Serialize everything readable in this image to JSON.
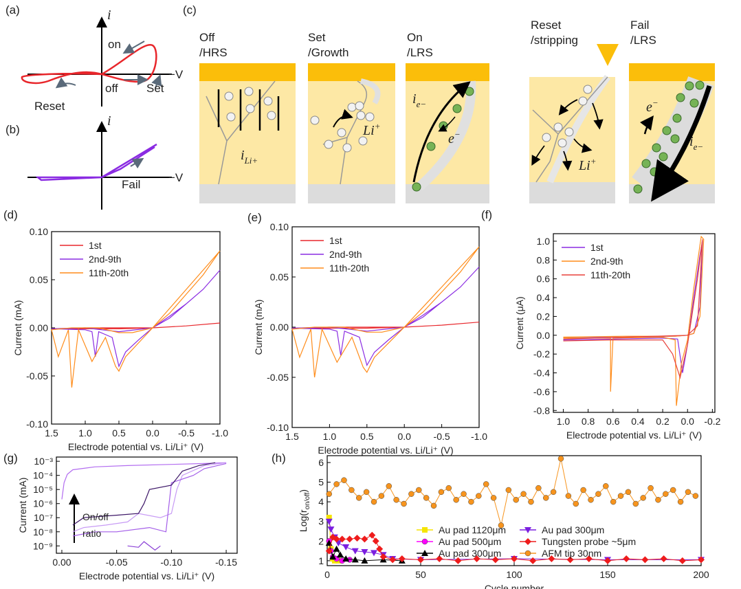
{
  "diagrams": {
    "a": {
      "panel": "(a)",
      "axis_i": "i",
      "on": "on",
      "off": "off",
      "set": "Set",
      "reset": "Reset",
      "neg_v": "−V"
    },
    "b": {
      "panel": "(b)",
      "axis_i": "i",
      "fail": "Fail",
      "neg_v": "−V"
    },
    "c": {
      "panel": "(c)",
      "stages": [
        {
          "title": [
            "Off",
            "/HRS"
          ],
          "label": {
            "base": "i",
            "sub": "Li+"
          }
        },
        {
          "title": [
            "Set",
            "/Growth"
          ],
          "label": {
            "base": "Li",
            "sup": "+"
          }
        },
        {
          "title": [
            "On",
            "/LRS"
          ],
          "labels": [
            {
              "base": "i",
              "sub": "e−"
            },
            {
              "base": "e",
              "sup": "−"
            }
          ]
        },
        {
          "title": [
            "Reset",
            "/stripping"
          ],
          "label": {
            "base": "Li",
            "sup": "+"
          }
        },
        {
          "title": [
            "Fail",
            "/LRS"
          ],
          "labels": [
            {
              "base": "e",
              "sup": "−"
            },
            {
              "base": "i",
              "sub": "e−"
            }
          ]
        }
      ]
    }
  },
  "chart_data": [
    {
      "panel": "(d)",
      "type": "line",
      "xlabel": "Electrode potential vs. Li/Li⁺ (V)",
      "ylabel": "Current (mA)",
      "xlim": [
        1.5,
        -1.0
      ],
      "ylim": [
        -0.1,
        0.1
      ],
      "xticks": [
        1.5,
        {
          "value": 1,
          "label": "1.0"
        },
        0.5,
        {
          "value": 0,
          "label": "0.0"
        },
        -0.5,
        {
          "value": -1,
          "label": "-1.0"
        }
      ],
      "yticks": [
        {
          "value": -0.1,
          "label": "-0.10"
        },
        -0.05,
        {
          "value": 0,
          "label": "0.00"
        },
        0.05,
        {
          "value": 0.1,
          "label": "0.10"
        }
      ],
      "legend": "upper left",
      "series": [
        {
          "name": "1st",
          "color": "#e8262b",
          "x": [
            0,
            -0.5,
            -1.0,
            -0.5,
            0,
            0.5,
            1.0,
            1.5,
            1.0,
            0.5,
            0
          ],
          "values": [
            0,
            0.002,
            0.005,
            0.002,
            0,
            -0.001,
            -0.001,
            -0.001,
            0,
            0,
            0
          ]
        },
        {
          "name": "2nd-9th",
          "color": "#8a2be2",
          "x": [
            0,
            -0.25,
            -0.5,
            -0.75,
            -1.0,
            -0.75,
            -0.5,
            -0.25,
            0,
            0.2,
            0.4,
            0.5,
            0.6,
            0.8,
            0.85,
            0.9,
            1.0,
            1.5,
            1.0,
            0.5,
            0
          ],
          "values": [
            0,
            0.012,
            0.025,
            0.04,
            0.06,
            0.04,
            0.025,
            0.01,
            0,
            -0.012,
            -0.025,
            -0.04,
            -0.01,
            -0.004,
            -0.03,
            -0.004,
            -0.002,
            -0.001,
            0,
            -0.004,
            0
          ]
        },
        {
          "name": "11th-20th",
          "color": "#ff8c1a",
          "x": [
            0,
            -0.25,
            -0.5,
            -0.75,
            -1.0,
            -0.75,
            -0.5,
            -0.25,
            0,
            0.2,
            0.4,
            0.5,
            0.55,
            0.7,
            0.9,
            1.1,
            1.2,
            1.25,
            1.4,
            1.5,
            1.2,
            1.0,
            0.8,
            0.5,
            0.3,
            0
          ],
          "values": [
            0,
            0.02,
            0.04,
            0.06,
            0.08,
            0.055,
            0.035,
            0.015,
            0,
            -0.015,
            -0.03,
            -0.045,
            -0.04,
            -0.01,
            -0.035,
            -0.002,
            -0.062,
            -0.002,
            -0.03,
            -0.002,
            0,
            0,
            0,
            -0.005,
            -0.005,
            0
          ]
        }
      ]
    },
    {
      "panel": "(e)",
      "type": "line",
      "xlabel": "Electrode potential vs. Li/Li⁺ (V)",
      "ylabel": "Current (mA)",
      "xlim": [
        1.5,
        -1.0
      ],
      "ylim": [
        -0.1,
        0.1
      ],
      "xticks": [
        1.5,
        {
          "value": 1,
          "label": "1.0"
        },
        0.5,
        {
          "value": 0,
          "label": "0.0"
        },
        -0.5,
        {
          "value": -1,
          "label": "-1.0"
        }
      ],
      "yticks": [
        {
          "value": -0.1,
          "label": "-0.10"
        },
        -0.05,
        {
          "value": 0,
          "label": "0.00"
        },
        0.05,
        {
          "value": 0.1,
          "label": "0.10"
        }
      ],
      "legend": "upper left",
      "series": [
        {
          "name": "1st",
          "color": "#e8262b",
          "x": [
            0,
            -0.5,
            -1.0,
            -0.5,
            0,
            0.5,
            1.0,
            1.5,
            1.0,
            0.5,
            0
          ],
          "values": [
            0,
            0.002,
            0.005,
            0.002,
            0,
            -0.001,
            -0.001,
            -0.001,
            0,
            0,
            0
          ]
        },
        {
          "name": "2nd-9th",
          "color": "#8a2be2",
          "x": [
            0,
            -0.25,
            -0.5,
            -0.75,
            -1.0,
            -0.75,
            -0.5,
            -0.25,
            0,
            0.2,
            0.4,
            0.5,
            0.6,
            0.8,
            0.85,
            0.9,
            1.0,
            1.5,
            1.0,
            0.5,
            0
          ],
          "values": [
            0,
            0.012,
            0.025,
            0.04,
            0.06,
            0.04,
            0.025,
            0.01,
            0,
            -0.012,
            -0.025,
            -0.038,
            -0.01,
            -0.004,
            -0.028,
            -0.004,
            -0.002,
            -0.001,
            0,
            -0.004,
            0
          ]
        },
        {
          "name": "11th-20th",
          "color": "#ff8c1a",
          "x": [
            0,
            -0.25,
            -0.5,
            -0.75,
            -1.0,
            -0.75,
            -0.5,
            -0.25,
            0,
            0.2,
            0.4,
            0.5,
            0.55,
            0.7,
            0.9,
            1.1,
            1.2,
            1.25,
            1.4,
            1.5,
            1.2,
            1.0,
            0.8,
            0.5,
            0.3,
            0
          ],
          "values": [
            0,
            0.02,
            0.04,
            0.06,
            0.08,
            0.055,
            0.035,
            0.015,
            0,
            -0.015,
            -0.03,
            -0.045,
            -0.04,
            -0.01,
            -0.035,
            -0.002,
            -0.05,
            -0.002,
            -0.03,
            -0.002,
            0,
            0,
            0,
            -0.005,
            -0.005,
            0
          ]
        }
      ]
    },
    {
      "panel": "(f)",
      "type": "line",
      "xlabel": "Electrode potential vs. Li/Li⁺ (V)",
      "ylabel": "Current (μA)",
      "xlim": [
        1.08,
        -0.22
      ],
      "ylim": [
        -0.82,
        1.08
      ],
      "xticks": [
        {
          "value": 1,
          "label": "1.0"
        },
        0.8,
        0.6,
        0.4,
        0.2,
        {
          "value": 0,
          "label": "0.0"
        },
        -0.2
      ],
      "yticks": [
        -0.8,
        -0.6,
        -0.4,
        -0.2,
        {
          "value": 0,
          "label": "0.0"
        },
        0.2,
        0.4,
        0.6,
        0.8,
        {
          "value": 1,
          "label": "1.0"
        }
      ],
      "legend": "upper left",
      "series": [
        {
          "name": "1st",
          "color": "#8a2be2",
          "x": [
            1.0,
            0.6,
            0.2,
            0.08,
            0.04,
            0.0,
            -0.05,
            -0.1,
            -0.12,
            -0.1,
            -0.05,
            0.0,
            0.1,
            0.5,
            1.0
          ],
          "values": [
            -0.05,
            -0.04,
            -0.03,
            -0.04,
            -0.4,
            -0.1,
            0.4,
            0.85,
            1.0,
            0.3,
            0.02,
            0.0,
            -0.01,
            -0.02,
            -0.03
          ]
        },
        {
          "name": "2nd-9th",
          "color": "#ff8c1a",
          "x": [
            1.0,
            0.62,
            0.62,
            0.6,
            0.2,
            0.1,
            0.09,
            0.05,
            0.0,
            -0.05,
            -0.11,
            -0.13,
            -0.1,
            -0.05,
            0.0,
            0.1,
            0.5,
            1.0
          ],
          "values": [
            -0.03,
            -0.03,
            -0.6,
            -0.03,
            -0.02,
            -0.05,
            -0.75,
            -0.3,
            -0.05,
            0.5,
            1.05,
            1.02,
            0.2,
            0.02,
            0.0,
            -0.01,
            -0.01,
            -0.02
          ]
        },
        {
          "name": "11th-20th",
          "color": "#e8413a",
          "x": [
            1.0,
            0.6,
            0.2,
            0.12,
            0.06,
            0.0,
            -0.08,
            -0.12,
            -0.08,
            0.0,
            0.5,
            1.0
          ],
          "values": [
            -0.06,
            -0.05,
            -0.05,
            -0.2,
            -0.45,
            -0.1,
            0.6,
            1.02,
            0.1,
            0.0,
            -0.02,
            -0.04
          ]
        }
      ]
    },
    {
      "panel": "(g)",
      "type": "line",
      "xlabel": "Electrode potential vs. Li/Li⁺ (V)",
      "ylabel": "Current (mA)",
      "xlim": [
        0.005,
        -0.16
      ],
      "ylim": [
        3e-10,
        0.002
      ],
      "ylog": true,
      "xticks": [
        {
          "value": 0,
          "label": "0.00"
        },
        -0.05,
        {
          "value": -0.1,
          "label": "-0.10"
        },
        -0.15
      ],
      "yticks": [
        {
          "value": 1e-09,
          "label": "10⁻⁹"
        },
        {
          "value": 1e-08,
          "label": "10⁻⁸"
        },
        {
          "value": 1e-07,
          "label": "10⁻⁷"
        },
        {
          "value": 1e-06,
          "label": "10⁻⁶"
        },
        {
          "value": 1e-05,
          "label": "10⁻⁵"
        },
        {
          "value": 0.0001,
          "label": "10⁻⁴"
        },
        {
          "value": 0.001,
          "label": "10⁻³"
        }
      ],
      "annotation": [
        "On/off",
        "ratio"
      ],
      "series": [
        {
          "color": "#b26cf0",
          "x": [
            0,
            -0.002,
            -0.005,
            -0.01,
            -0.03,
            -0.06,
            -0.1,
            -0.13,
            -0.15
          ],
          "values": [
            2e-06,
            3e-05,
            0.00012,
            0.00025,
            0.0004,
            0.0005,
            0.0006,
            0.0007,
            0.0008
          ]
        },
        {
          "color": "#c79af5",
          "x": [
            -0.01,
            -0.02,
            -0.04,
            -0.06,
            -0.07,
            -0.09,
            -0.1,
            -0.105,
            -0.11,
            -0.13,
            -0.15
          ],
          "values": [
            1e-08,
            2e-08,
            3e-08,
            5e-08,
            2e-07,
            1e-07,
            2e-07,
            1e-05,
            0.0001,
            0.0005,
            0.0008
          ]
        },
        {
          "color": "#a35de8",
          "x": [
            -0.01,
            -0.03,
            -0.05,
            -0.08,
            -0.095,
            -0.1,
            -0.12,
            -0.13,
            -0.15
          ],
          "values": [
            5e-09,
            1e-08,
            1e-08,
            2e-08,
            1e-08,
            3e-05,
            0.0001,
            0.0003,
            0.0007
          ]
        },
        {
          "color": "#3b1466",
          "x": [
            -0.01,
            -0.02,
            -0.05,
            -0.07,
            -0.075,
            -0.08,
            -0.1,
            -0.11,
            -0.125,
            -0.14
          ],
          "values": [
            3e-08,
            1e-07,
            1.5e-07,
            2e-07,
            1e-06,
            1e-05,
            2e-05,
            0.0002,
            0.0005,
            0.0008
          ]
        },
        {
          "color": "#8a3fd6",
          "x": [
            -0.06,
            -0.07,
            -0.075,
            -0.085,
            -0.09
          ],
          "values": [
            1e-09,
            8e-10,
            2e-09,
            5e-10,
            1e-09
          ]
        }
      ]
    },
    {
      "panel": "(h)",
      "type": "line",
      "xlabel": "Cycle number",
      "ylabel": [
        "Log(r",
        "on/off",
        ")"
      ],
      "xlim": [
        0,
        200
      ],
      "ylim": [
        0.75,
        6.35
      ],
      "xticks": [
        0,
        50,
        100,
        150,
        200
      ],
      "yticks": [
        1,
        2,
        3,
        4,
        5,
        6
      ],
      "legend": "lower center",
      "series": [
        {
          "name": "Au pad 1120μm",
          "color": "#f5e400",
          "marker": "square",
          "x": [
            1,
            2,
            3,
            4,
            6
          ],
          "values": [
            3.2,
            1.6,
            1.1,
            1.0,
            1.0
          ]
        },
        {
          "name": "Au pad 500μm",
          "color": "#ff00ff",
          "marker": "circle",
          "x": [
            1,
            2,
            3,
            5,
            8,
            12
          ],
          "values": [
            2.0,
            1.5,
            1.2,
            1.1,
            1.0,
            1.05
          ]
        },
        {
          "name": "Au pad 300μm",
          "color": "#000000",
          "marker": "triangle-up",
          "x": [
            1,
            3,
            5,
            7,
            10,
            15,
            20,
            30,
            40
          ],
          "values": [
            1.9,
            1.2,
            1.6,
            1.3,
            1.1,
            1.05,
            1.0,
            1.05,
            1.0
          ]
        },
        {
          "name": "Au pad 300μm",
          "color": "#7b1fe0",
          "marker": "triangle-down",
          "x": [
            1,
            2,
            4,
            6,
            10,
            15,
            20,
            25,
            30,
            35,
            50,
            100,
            150,
            200
          ],
          "values": [
            3.0,
            2.6,
            2.2,
            1.9,
            1.7,
            1.5,
            1.45,
            1.4,
            1.3,
            1.1,
            1.05,
            1.1,
            1.05,
            1.05
          ]
        },
        {
          "name": "Tungsten probe ~5μm",
          "color": "#ee1c1c",
          "marker": "diamond",
          "x": [
            1,
            3,
            5,
            8,
            12,
            16,
            20,
            24,
            26,
            28,
            30,
            35,
            40,
            50,
            60,
            70,
            80,
            90,
            100,
            110,
            120,
            130,
            140,
            150,
            160,
            170,
            180,
            190,
            200
          ],
          "values": [
            1.5,
            2.2,
            2.1,
            2.1,
            2.1,
            2.15,
            2.1,
            2.3,
            2.0,
            1.6,
            1.2,
            1.05,
            1.1,
            1.05,
            1.1,
            1.0,
            1.1,
            1.05,
            1.1,
            1.0,
            1.1,
            1.05,
            1.1,
            1.0,
            1.1,
            1.05,
            1.1,
            1.0,
            1.05
          ]
        },
        {
          "name": "AFM tip 30nm",
          "color": "#f7941d",
          "marker": "circle",
          "x": [
            1,
            5,
            9,
            13,
            17,
            21,
            25,
            29,
            33,
            37,
            41,
            45,
            49,
            53,
            57,
            61,
            65,
            69,
            73,
            77,
            81,
            85,
            89,
            93,
            97,
            101,
            105,
            109,
            113,
            117,
            121,
            125,
            129,
            133,
            137,
            141,
            145,
            149,
            153,
            157,
            161,
            165,
            169,
            173,
            177,
            181,
            185,
            189,
            193,
            197
          ],
          "values": [
            4.4,
            4.9,
            5.1,
            4.6,
            4.2,
            4.5,
            4.0,
            4.3,
            4.8,
            4.1,
            3.9,
            4.4,
            4.6,
            4.2,
            3.8,
            4.5,
            4.7,
            4.1,
            4.4,
            4.0,
            4.3,
            4.9,
            4.2,
            2.8,
            4.6,
            4.1,
            4.4,
            4.0,
            4.7,
            4.2,
            4.5,
            6.2,
            4.3,
            3.9,
            4.6,
            4.1,
            4.4,
            4.8,
            4.0,
            4.3,
            4.5,
            3.9,
            4.2,
            4.7,
            4.1,
            4.4,
            4.6,
            4.0,
            4.5,
            4.3
          ]
        }
      ]
    }
  ]
}
